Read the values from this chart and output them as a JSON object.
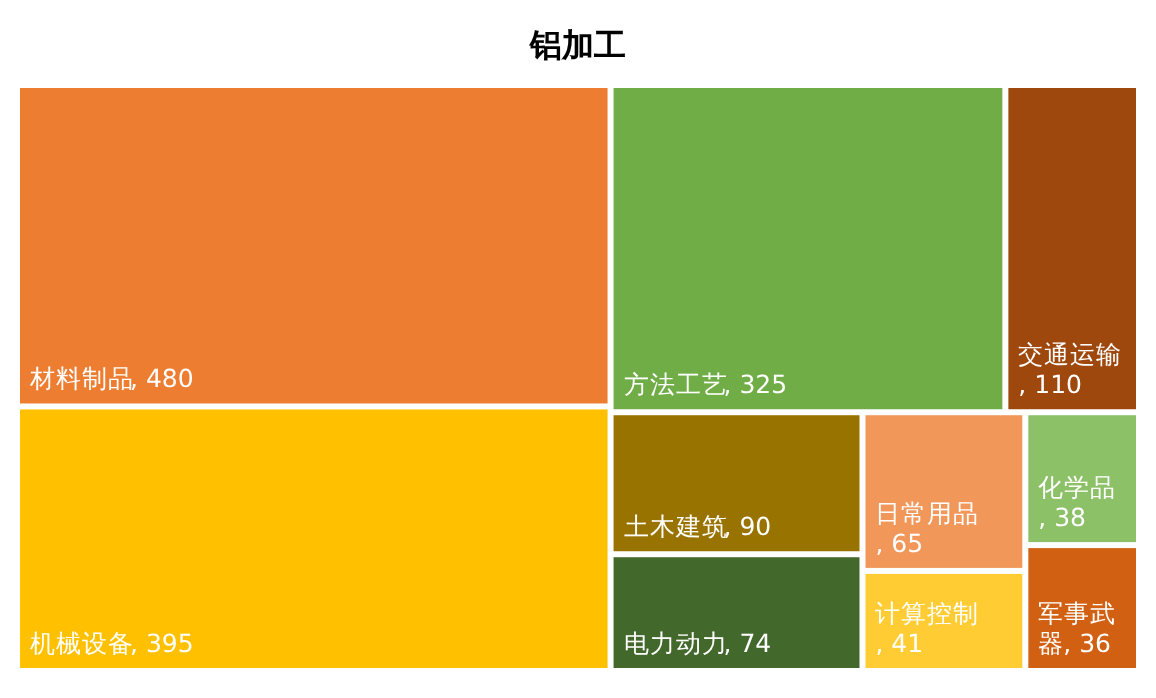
{
  "chart_data": {
    "type": "other",
    "title": "铝加工",
    "categories": [
      "材料制品",
      "机械设备",
      "方法工艺",
      "交通运输",
      "土木建筑",
      "电力动力",
      "日常用品",
      "计算控制",
      "化学品",
      "军事武器"
    ],
    "values": [
      480,
      395,
      325,
      110,
      90,
      74,
      65,
      41,
      38,
      36
    ],
    "value_labels": [
      ", 480",
      ", 395",
      ", 325",
      ", 110",
      ", 90",
      ", 74",
      ", 65",
      ", 41",
      ", 38",
      ", 36"
    ],
    "colors": [
      "#ed7d31",
      "#ffc000",
      "#70ad47",
      "#9e480e",
      "#997300",
      "#43682b",
      "#f1975a",
      "#ffcd33",
      "#8cc168",
      "#d26012"
    ]
  }
}
